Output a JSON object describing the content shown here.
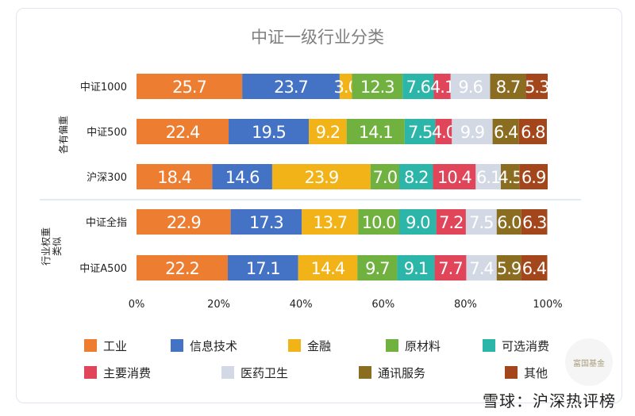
{
  "chart_data": {
    "type": "bar",
    "stacked": true,
    "orientation": "horizontal",
    "title": "中证一级行业分类",
    "categories": [
      "中证1000",
      "中证500",
      "沪深300",
      "中证全指",
      "中证A500"
    ],
    "group_labels": [
      "各有偏重",
      "行业权重\n类似"
    ],
    "series": [
      {
        "name": "工业",
        "color": "#ED7D31",
        "values": [
          25.7,
          22.4,
          18.4,
          22.9,
          22.2
        ]
      },
      {
        "name": "信息技术",
        "color": "#4472C4",
        "values": [
          23.7,
          19.5,
          14.6,
          17.3,
          17.1
        ]
      },
      {
        "name": "金融",
        "color": "#F2B318",
        "values": [
          3.0,
          9.2,
          23.9,
          13.7,
          14.4
        ]
      },
      {
        "name": "原材料",
        "color": "#70B140",
        "values": [
          12.3,
          14.1,
          7.0,
          10.0,
          9.7
        ]
      },
      {
        "name": "可选消费",
        "color": "#2CB5A9",
        "values": [
          7.6,
          7.5,
          8.2,
          9.0,
          9.1
        ]
      },
      {
        "name": "主要消费",
        "color": "#E0455A",
        "values": [
          4.1,
          4.0,
          10.4,
          7.2,
          7.7
        ]
      },
      {
        "name": "医药卫生",
        "color": "#D2D9E5",
        "values": [
          9.6,
          9.9,
          6.1,
          7.5,
          7.4
        ]
      },
      {
        "name": "通讯服务",
        "color": "#8B6D22",
        "values": [
          8.7,
          6.4,
          4.5,
          6.0,
          5.9
        ]
      },
      {
        "name": "其他",
        "color": "#A3461C",
        "values": [
          5.3,
          6.8,
          6.9,
          6.3,
          6.4
        ]
      }
    ],
    "xlim": [
      0,
      100
    ],
    "x_ticks": [
      "0%",
      "20%",
      "40%",
      "60%",
      "80%",
      "100%"
    ],
    "legend_position": "bottom",
    "watermark": "雪球：沪深热评榜",
    "badge_text": "富国基金"
  }
}
